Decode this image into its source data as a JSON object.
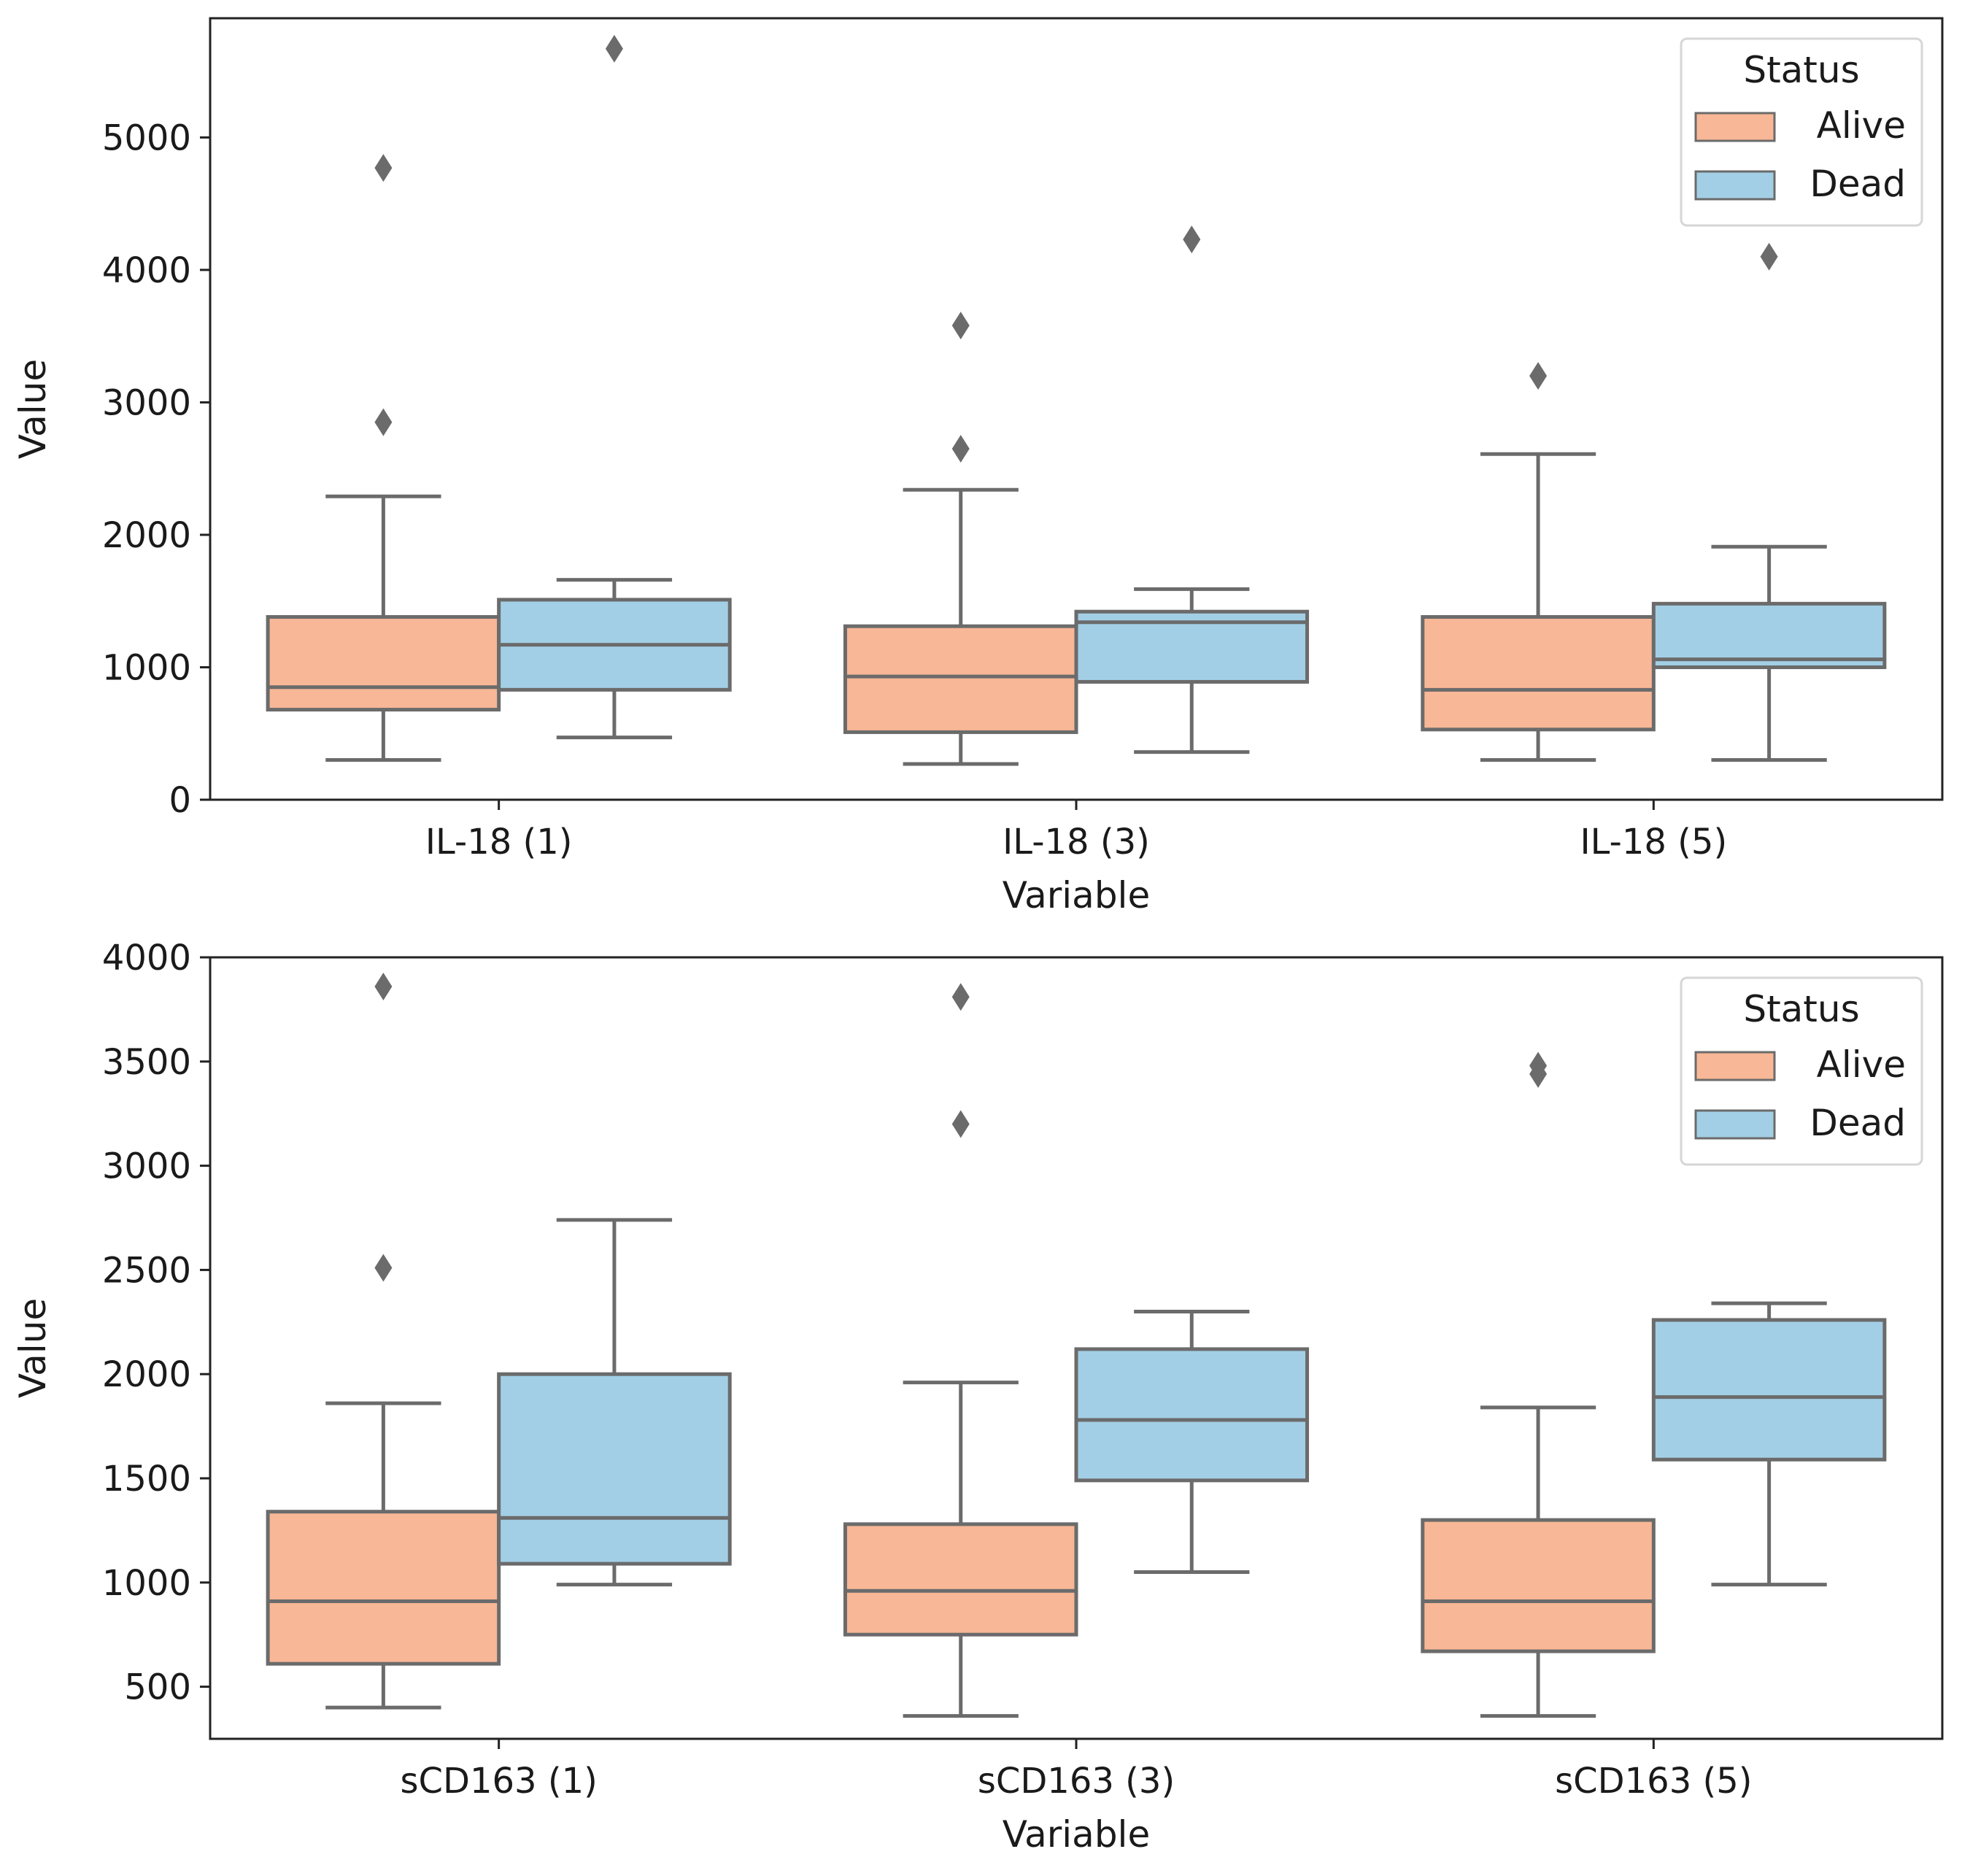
{
  "chart_data": [
    {
      "type": "box",
      "xlabel": "Variable",
      "ylabel": "Value",
      "ylim": [
        0,
        5900
      ],
      "yticks": [
        0,
        1000,
        2000,
        3000,
        4000,
        5000
      ],
      "categories": [
        "IL-18 (1)",
        "IL-18 (3)",
        "IL-18 (5)"
      ],
      "legend": {
        "title": "Status",
        "entries": [
          "Alive",
          "Dead"
        ],
        "placement": "top-right"
      },
      "series": [
        {
          "name": "Alive",
          "color": "#f8b796",
          "boxes": [
            {
              "whislo": 300,
              "q1": 680,
              "med": 850,
              "q3": 1380,
              "whishi": 2290,
              "fliers": [
                2850,
                4770
              ]
            },
            {
              "whislo": 270,
              "q1": 510,
              "med": 930,
              "q3": 1310,
              "whishi": 2340,
              "fliers": [
                2650,
                3580
              ]
            },
            {
              "whislo": 300,
              "q1": 530,
              "med": 830,
              "q3": 1380,
              "whishi": 2610,
              "fliers": [
                3200
              ]
            }
          ]
        },
        {
          "name": "Dead",
          "color": "#a3cfe6",
          "boxes": [
            {
              "whislo": 470,
              "q1": 830,
              "med": 1170,
              "q3": 1510,
              "whishi": 1660,
              "fliers": [
                5670
              ]
            },
            {
              "whislo": 360,
              "q1": 890,
              "med": 1340,
              "q3": 1420,
              "whishi": 1590,
              "fliers": [
                4230
              ]
            },
            {
              "whislo": 300,
              "q1": 1000,
              "med": 1060,
              "q3": 1480,
              "whishi": 1910,
              "fliers": [
                4100
              ]
            }
          ]
        }
      ]
    },
    {
      "type": "box",
      "xlabel": "Variable",
      "ylabel": "Value",
      "ylim": [
        250,
        4000
      ],
      "yticks": [
        500,
        1000,
        1500,
        2000,
        2500,
        3000,
        3500,
        4000
      ],
      "categories": [
        "sCD163 (1)",
        "sCD163 (3)",
        "sCD163 (5)"
      ],
      "legend": {
        "title": "Status",
        "entries": [
          "Alive",
          "Dead"
        ],
        "placement": "top-right"
      },
      "series": [
        {
          "name": "Alive",
          "color": "#f8b796",
          "boxes": [
            {
              "whislo": 400,
              "q1": 610,
              "med": 910,
              "q3": 1340,
              "whishi": 1860,
              "fliers": [
                2510,
                3860
              ]
            },
            {
              "whislo": 360,
              "q1": 750,
              "med": 960,
              "q3": 1280,
              "whishi": 1960,
              "fliers": [
                3200,
                3810
              ]
            },
            {
              "whislo": 360,
              "q1": 670,
              "med": 910,
              "q3": 1300,
              "whishi": 1840,
              "fliers": [
                3440,
                3480
              ]
            }
          ]
        },
        {
          "name": "Dead",
          "color": "#a3cfe6",
          "boxes": [
            {
              "whislo": 990,
              "q1": 1090,
              "med": 1310,
              "q3": 2000,
              "whishi": 2740,
              "fliers": []
            },
            {
              "whislo": 1050,
              "q1": 1490,
              "med": 1780,
              "q3": 2120,
              "whishi": 2300,
              "fliers": []
            },
            {
              "whislo": 990,
              "q1": 1590,
              "med": 1890,
              "q3": 2260,
              "whishi": 2340,
              "fliers": []
            }
          ]
        }
      ]
    }
  ]
}
